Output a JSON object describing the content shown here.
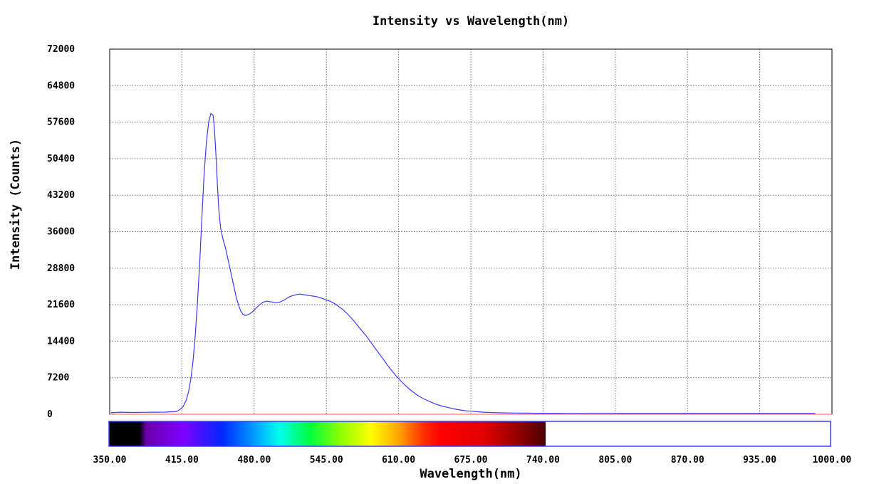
{
  "chart_data": {
    "type": "line",
    "title": "Intensity vs Wavelength(nm)",
    "xlabel": "Wavelength(nm)",
    "ylabel": "Intensity (Counts)",
    "xlim": [
      350,
      1000
    ],
    "ylim": [
      0,
      72000
    ],
    "grid": true,
    "x_tick_labels": [
      "350.00",
      "415.00",
      "480.00",
      "545.00",
      "610.00",
      "675.00",
      "740.00",
      "805.00",
      "870.00",
      "935.00",
      "1000.00"
    ],
    "y_tick_labels": [
      "0",
      "7200",
      "14400",
      "21600",
      "28800",
      "36000",
      "43200",
      "50400",
      "57600",
      "64800",
      "72000"
    ],
    "colors": {
      "series": "#3b3bff",
      "baseline": "#ff5a5a",
      "grid": "#707070"
    },
    "series": [
      {
        "x": [
          351,
          360,
          370,
          380,
          390,
          400,
          410,
          413,
          416,
          419,
          421,
          423,
          425,
          427,
          429,
          431,
          433,
          435,
          437,
          439,
          441,
          443,
          444,
          445,
          446,
          447,
          448,
          449,
          450,
          452,
          454,
          456,
          458,
          460,
          462,
          464,
          466,
          468,
          470,
          472,
          474,
          476,
          478,
          480,
          482,
          485,
          488,
          491,
          494,
          497,
          500,
          503,
          506,
          509,
          512,
          515,
          518,
          521,
          524,
          527,
          530,
          533,
          536,
          539,
          542,
          545,
          548,
          551,
          554,
          557,
          560,
          563,
          566,
          569,
          572,
          575,
          578,
          581,
          584,
          587,
          590,
          593,
          596,
          599,
          602,
          605,
          608,
          611,
          614,
          617,
          620,
          623,
          626,
          629,
          632,
          635,
          638,
          641,
          644,
          647,
          650,
          655,
          660,
          665,
          670,
          675,
          680,
          685,
          690,
          695,
          700,
          705,
          710,
          715,
          720,
          725,
          730,
          735,
          740,
          750,
          760,
          770,
          780,
          800,
          820,
          840,
          860,
          880,
          900,
          920,
          940,
          960,
          985
        ],
        "y": [
          300,
          400,
          350,
          380,
          400,
          420,
          550,
          900,
          1500,
          2800,
          4500,
          7000,
          10500,
          15500,
          22000,
          30000,
          39000,
          47500,
          53500,
          57500,
          59300,
          59000,
          57000,
          53500,
          49500,
          45000,
          41000,
          38500,
          36500,
          34500,
          33000,
          31000,
          29000,
          27000,
          25000,
          23000,
          21500,
          20300,
          19700,
          19500,
          19600,
          19800,
          20100,
          20500,
          21000,
          21600,
          22100,
          22300,
          22200,
          22100,
          22000,
          22100,
          22400,
          22800,
          23200,
          23400,
          23600,
          23700,
          23600,
          23500,
          23400,
          23300,
          23200,
          23000,
          22800,
          22500,
          22300,
          22000,
          21600,
          21100,
          20600,
          20000,
          19300,
          18600,
          17800,
          17000,
          16200,
          15400,
          14500,
          13600,
          12700,
          11800,
          10900,
          10000,
          9100,
          8300,
          7500,
          6800,
          6100,
          5500,
          4900,
          4400,
          3900,
          3500,
          3100,
          2800,
          2500,
          2200,
          1950,
          1750,
          1550,
          1300,
          1050,
          850,
          700,
          600,
          500,
          420,
          360,
          320,
          290,
          270,
          250,
          240,
          230,
          220,
          210,
          200,
          200,
          190,
          180,
          180,
          170,
          170,
          160,
          160,
          160,
          150,
          150,
          150,
          150,
          150,
          150
        ]
      }
    ]
  }
}
